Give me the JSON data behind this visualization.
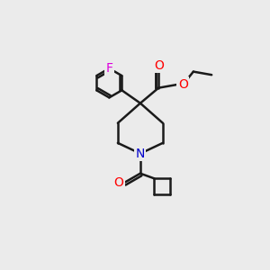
{
  "background_color": "#ebebeb",
  "line_color": "#1a1a1a",
  "bond_width": 1.8,
  "atoms": {
    "F": {
      "color": "#dd00dd",
      "size": 10
    },
    "O": {
      "color": "#ff0000",
      "size": 10
    },
    "N": {
      "color": "#0000cc",
      "size": 10
    }
  },
  "xlim": [
    0,
    10
  ],
  "ylim": [
    0,
    10
  ]
}
